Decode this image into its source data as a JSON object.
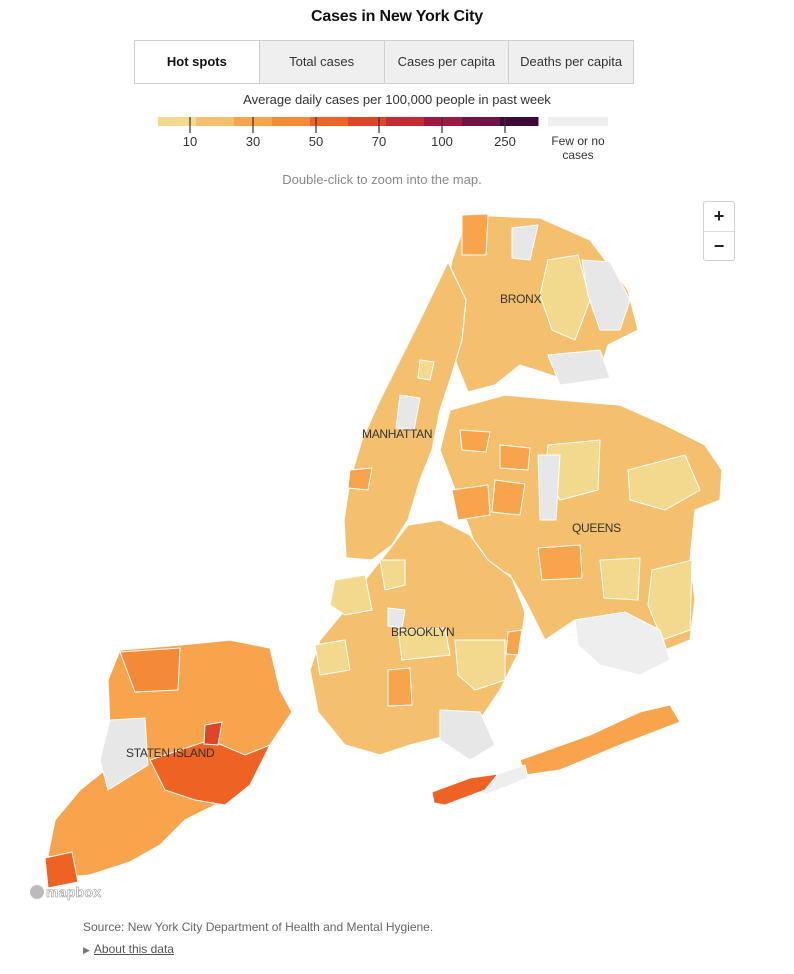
{
  "title": "Cases in New York City",
  "tabs": [
    {
      "label": "Hot spots",
      "active": true
    },
    {
      "label": "Total cases",
      "active": false
    },
    {
      "label": "Cases per capita",
      "active": false
    },
    {
      "label": "Deaths per capita",
      "active": false
    }
  ],
  "legend": {
    "title": "Average daily cases per 100,000 people in past week",
    "colors": [
      "#f2d98d",
      "#f5c06e",
      "#f7a44c",
      "#f48a37",
      "#ee6324",
      "#de4627",
      "#c22b34",
      "#9e1a42",
      "#701243",
      "#3d0a38"
    ],
    "ticks": [
      "10",
      "30",
      "50",
      "70",
      "100",
      "250"
    ],
    "no_data_label_line1": "Few or no",
    "no_data_label_line2": "cases",
    "no_data_color": "#efefef"
  },
  "hint": "Double-click to zoom into the map.",
  "map": {
    "boroughs": [
      "BRONX",
      "MANHATTAN",
      "QUEENS",
      "BROOKLYN",
      "STATEN ISLAND"
    ],
    "zoom_in": "+",
    "zoom_out": "−",
    "attribution": "mapbox"
  },
  "source": "Source: New York City Department of Health and Mental Hygiene.",
  "about": {
    "arrow": "▶",
    "label": "About this data"
  }
}
